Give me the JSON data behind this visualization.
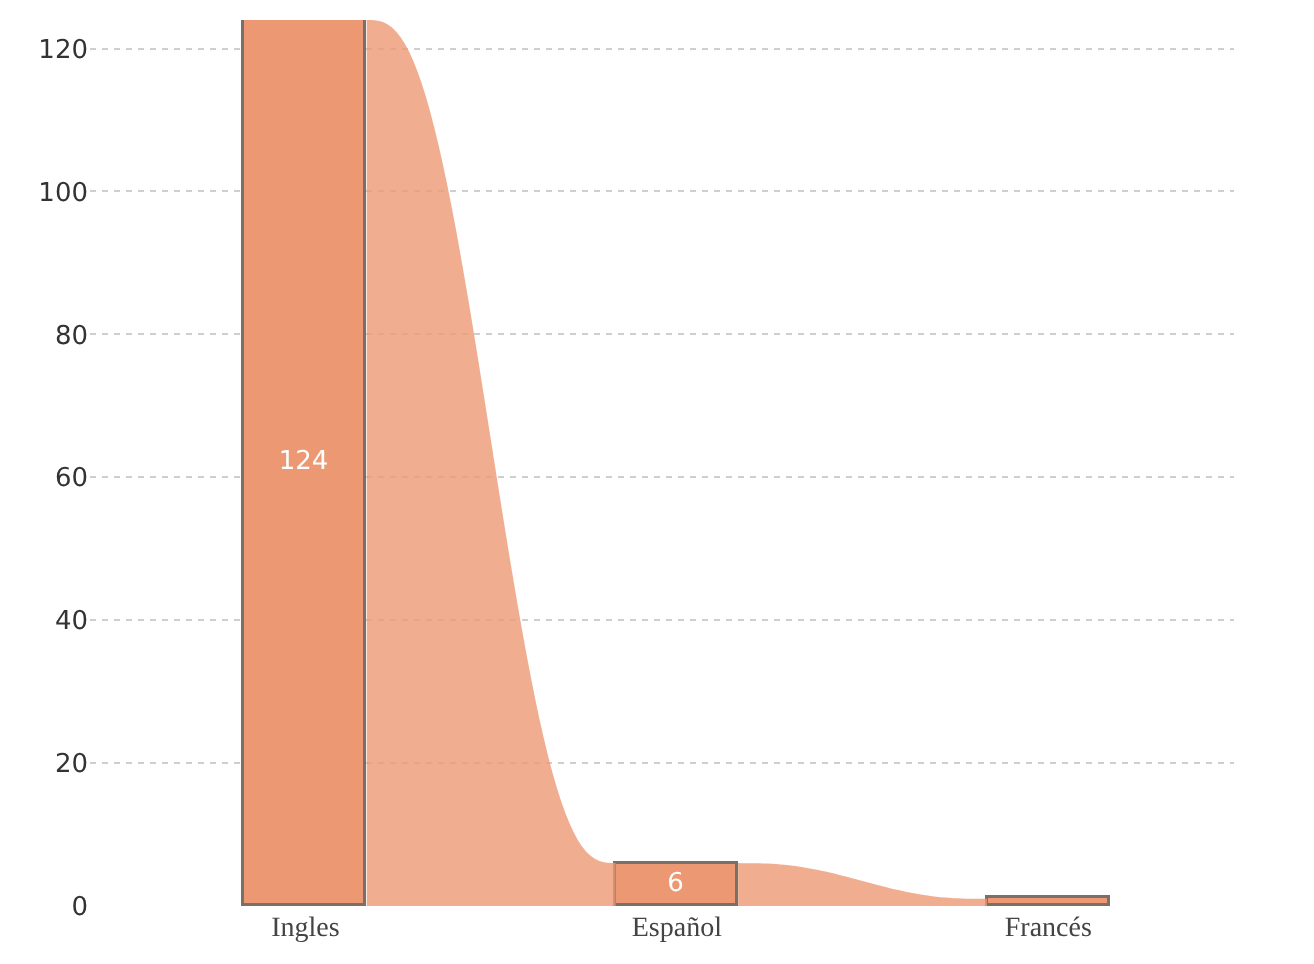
{
  "chart_data": {
    "type": "bar",
    "categories": [
      "Ingles",
      "Español",
      "Francés"
    ],
    "values": [
      124,
      6,
      1
    ],
    "value_labels": [
      "124",
      "6",
      null
    ],
    "colors": [
      "#ec9873",
      "#ec9873",
      "#ec9873"
    ],
    "ylim": [
      0,
      124
    ],
    "yticks": [
      0,
      20,
      40,
      60,
      80,
      100,
      120
    ],
    "grid": "y"
  }
}
